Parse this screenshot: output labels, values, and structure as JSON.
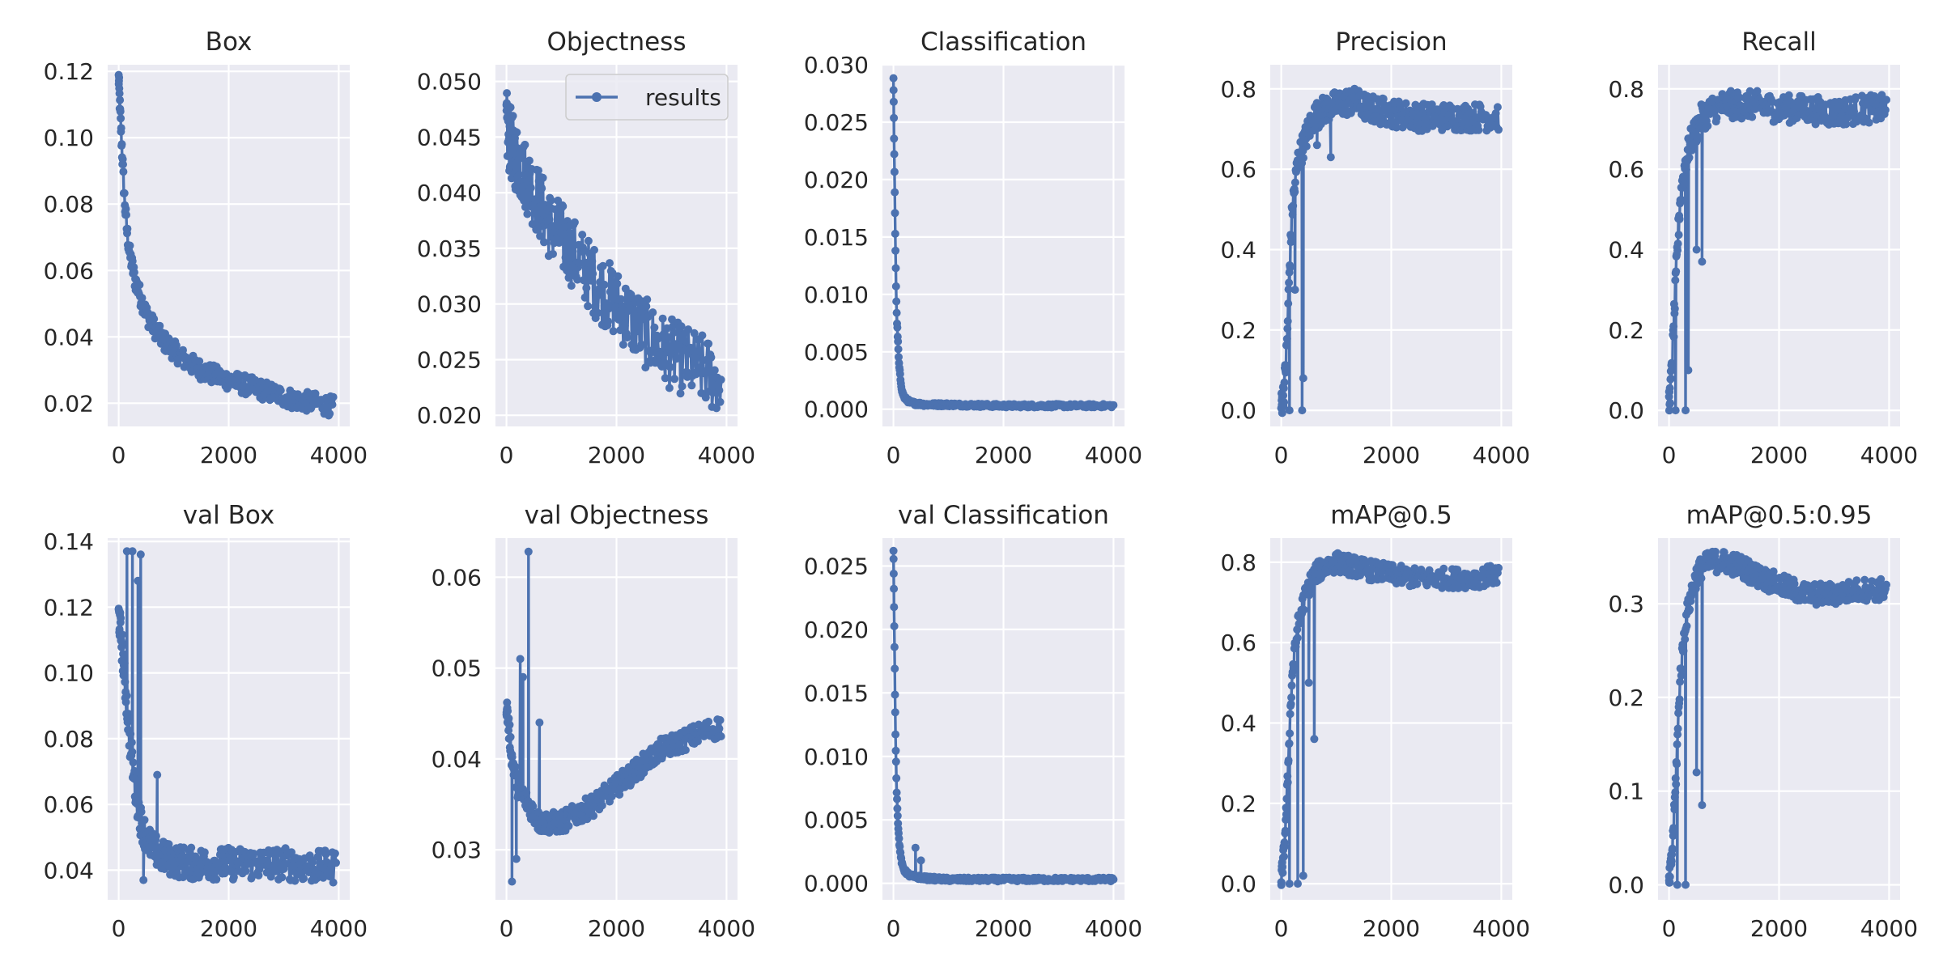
{
  "colors": {
    "series": "#4c72b0",
    "panel_bg": "#eaeaf2",
    "grid": "#ffffff",
    "text": "#262626"
  },
  "chart_data": [
    {
      "type": "line",
      "title": "Box",
      "xlabel": "",
      "ylabel": "",
      "xlim": [
        -200,
        4200
      ],
      "ylim": [
        0.013,
        0.122
      ],
      "xticks": [
        0,
        2000,
        4000
      ],
      "xtick_labels": [
        "0",
        "2000",
        "4000"
      ],
      "yticks": [
        0.02,
        0.04,
        0.06,
        0.08,
        0.1,
        0.12
      ],
      "ytick_labels": [
        "0.02",
        "0.04",
        "0.06",
        "0.08",
        "0.10",
        "0.12"
      ],
      "grid": true,
      "series": [
        {
          "x": [
            0,
            25,
            50,
            100,
            150,
            200,
            300,
            400,
            500,
            600,
            800,
            1000,
            1200,
            1500,
            1800,
            2000,
            2400,
            2800,
            3200,
            3600,
            3900
          ],
          "y": [
            0.118,
            0.108,
            0.1,
            0.083,
            0.072,
            0.065,
            0.057,
            0.052,
            0.047,
            0.044,
            0.039,
            0.036,
            0.033,
            0.03,
            0.028,
            0.027,
            0.025,
            0.023,
            0.021,
            0.02,
            0.019
          ],
          "noise": 0.003
        }
      ]
    },
    {
      "type": "line",
      "title": "Objectness",
      "xlabel": "",
      "ylabel": "",
      "xlim": [
        -200,
        4200
      ],
      "ylim": [
        0.019,
        0.0515
      ],
      "xticks": [
        0,
        2000,
        4000
      ],
      "xtick_labels": [
        "0",
        "2000",
        "4000"
      ],
      "yticks": [
        0.02,
        0.025,
        0.03,
        0.035,
        0.04,
        0.045,
        0.05
      ],
      "ytick_labels": [
        "0.020",
        "0.025",
        "0.030",
        "0.035",
        "0.040",
        "0.045",
        "0.050"
      ],
      "grid": true,
      "legend": "top-right",
      "series": [
        {
          "name": "results",
          "x": [
            0,
            50,
            100,
            200,
            400,
            600,
            800,
            1000,
            1300,
            1600,
            2000,
            2400,
            2800,
            3200,
            3600,
            3900
          ],
          "y": [
            0.046,
            0.045,
            0.044,
            0.043,
            0.041,
            0.039,
            0.037,
            0.036,
            0.034,
            0.032,
            0.03,
            0.028,
            0.026,
            0.025,
            0.024,
            0.023
          ],
          "noise": 0.0032
        }
      ]
    },
    {
      "type": "line",
      "title": "Classification",
      "xlabel": "",
      "ylabel": "",
      "xlim": [
        -200,
        4200
      ],
      "ylim": [
        -0.0015,
        0.03
      ],
      "xticks": [
        0,
        2000,
        4000
      ],
      "xtick_labels": [
        "0",
        "2000",
        "4000"
      ],
      "yticks": [
        0.0,
        0.005,
        0.01,
        0.015,
        0.02,
        0.025,
        0.03
      ],
      "ytick_labels": [
        "0.000",
        "0.005",
        "0.010",
        "0.015",
        "0.020",
        "0.025",
        "0.030"
      ],
      "grid": true,
      "series": [
        {
          "x": [
            0,
            10,
            20,
            30,
            40,
            50,
            60,
            80,
            100,
            130,
            160,
            200,
            250,
            300,
            400,
            600,
            1000,
            2000,
            3000,
            4000
          ],
          "y": [
            0.0287,
            0.024,
            0.02,
            0.016,
            0.013,
            0.01,
            0.008,
            0.006,
            0.004,
            0.0025,
            0.0015,
            0.001,
            0.0008,
            0.0006,
            0.0005,
            0.0004,
            0.0004,
            0.0003,
            0.0003,
            0.0003
          ],
          "noise": 0.00015
        }
      ]
    },
    {
      "type": "line",
      "title": "Precision",
      "xlabel": "",
      "ylabel": "",
      "xlim": [
        -200,
        4200
      ],
      "ylim": [
        -0.04,
        0.86
      ],
      "xticks": [
        0,
        2000,
        4000
      ],
      "xtick_labels": [
        "0",
        "2000",
        "4000"
      ],
      "yticks": [
        0.0,
        0.2,
        0.4,
        0.6,
        0.8
      ],
      "ytick_labels": [
        "0.0",
        "0.2",
        "0.4",
        "0.6",
        "0.8"
      ],
      "grid": true,
      "series": [
        {
          "x": [
            0,
            50,
            100,
            150,
            200,
            300,
            400,
            500,
            600,
            800,
            1000,
            1300,
            1600,
            2000,
            2500,
            3000,
            3500,
            3950
          ],
          "y": [
            0.01,
            0.05,
            0.15,
            0.35,
            0.5,
            0.62,
            0.66,
            0.7,
            0.73,
            0.75,
            0.76,
            0.77,
            0.75,
            0.74,
            0.73,
            0.73,
            0.73,
            0.73
          ],
          "noise": 0.035,
          "drops": [
            [
              150,
              0.0
            ],
            [
              250,
              0.3
            ],
            [
              380,
              0.0
            ],
            [
              400,
              0.08
            ],
            [
              650,
              0.66
            ],
            [
              900,
              0.63
            ]
          ]
        }
      ]
    },
    {
      "type": "line",
      "title": "Recall",
      "xlabel": "",
      "ylabel": "",
      "xlim": [
        -200,
        4200
      ],
      "ylim": [
        -0.04,
        0.86
      ],
      "xticks": [
        0,
        2000,
        4000
      ],
      "xtick_labels": [
        "0",
        "2000",
        "4000"
      ],
      "yticks": [
        0.0,
        0.2,
        0.4,
        0.6,
        0.8
      ],
      "ytick_labels": [
        "0.0",
        "0.2",
        "0.4",
        "0.6",
        "0.8"
      ],
      "grid": true,
      "series": [
        {
          "x": [
            0,
            50,
            100,
            150,
            200,
            300,
            400,
            500,
            600,
            800,
            1000,
            1300,
            1600,
            2000,
            2500,
            3000,
            3500,
            3950
          ],
          "y": [
            0.01,
            0.1,
            0.25,
            0.4,
            0.52,
            0.62,
            0.67,
            0.7,
            0.73,
            0.75,
            0.76,
            0.76,
            0.76,
            0.75,
            0.75,
            0.74,
            0.75,
            0.75
          ],
          "noise": 0.035,
          "drops": [
            [
              120,
              0.0
            ],
            [
              300,
              0.0
            ],
            [
              500,
              0.4
            ],
            [
              600,
              0.37
            ],
            [
              350,
              0.1
            ]
          ]
        }
      ]
    },
    {
      "type": "line",
      "title": "val Box",
      "xlabel": "",
      "ylabel": "",
      "xlim": [
        -200,
        4200
      ],
      "ylim": [
        0.031,
        0.141
      ],
      "xticks": [
        0,
        2000,
        4000
      ],
      "xtick_labels": [
        "0",
        "2000",
        "4000"
      ],
      "yticks": [
        0.04,
        0.06,
        0.08,
        0.1,
        0.12,
        0.14
      ],
      "ytick_labels": [
        "0.04",
        "0.06",
        "0.08",
        "0.10",
        "0.12",
        "0.14"
      ],
      "grid": true,
      "series": [
        {
          "x": [
            0,
            50,
            100,
            150,
            200,
            300,
            400,
            500,
            600,
            800,
            1000,
            1300,
            1600,
            2000,
            2500,
            3000,
            3500,
            3950
          ],
          "y": [
            0.118,
            0.11,
            0.1,
            0.09,
            0.08,
            0.065,
            0.055,
            0.05,
            0.047,
            0.044,
            0.043,
            0.042,
            0.042,
            0.042,
            0.042,
            0.042,
            0.041,
            0.041
          ],
          "noise": 0.005,
          "drops": [
            [
              150,
              0.137
            ],
            [
              250,
              0.137
            ],
            [
              400,
              0.136
            ],
            [
              350,
              0.128
            ],
            [
              700,
              0.069
            ],
            [
              450,
              0.037
            ]
          ]
        }
      ]
    },
    {
      "type": "line",
      "title": "val Objectness",
      "xlabel": "",
      "ylabel": "",
      "xlim": [
        -200,
        4200
      ],
      "ylim": [
        0.0245,
        0.0643
      ],
      "xticks": [
        0,
        2000,
        4000
      ],
      "xtick_labels": [
        "0",
        "2000",
        "4000"
      ],
      "yticks": [
        0.03,
        0.04,
        0.05,
        0.06
      ],
      "ytick_labels": [
        "0.03",
        "0.04",
        "0.05",
        "0.06"
      ],
      "grid": true,
      "series": [
        {
          "x": [
            0,
            50,
            100,
            200,
            300,
            400,
            500,
            600,
            800,
            1000,
            1300,
            1600,
            2000,
            2400,
            2800,
            3200,
            3600,
            3900
          ],
          "y": [
            0.046,
            0.043,
            0.04,
            0.037,
            0.036,
            0.035,
            0.034,
            0.033,
            0.033,
            0.033,
            0.034,
            0.035,
            0.037,
            0.039,
            0.041,
            0.042,
            0.043,
            0.0435
          ],
          "noise": 0.0012,
          "drops": [
            [
              400,
              0.0628
            ],
            [
              250,
              0.051
            ],
            [
              100,
              0.0265
            ],
            [
              180,
              0.029
            ],
            [
              300,
              0.049
            ],
            [
              600,
              0.044
            ]
          ]
        }
      ]
    },
    {
      "type": "line",
      "title": "val Classification",
      "xlabel": "",
      "ylabel": "",
      "xlim": [
        -200,
        4200
      ],
      "ylim": [
        -0.0013,
        0.0272
      ],
      "xticks": [
        0,
        2000,
        4000
      ],
      "xtick_labels": [
        "0",
        "2000",
        "4000"
      ],
      "yticks": [
        0.0,
        0.005,
        0.01,
        0.015,
        0.02,
        0.025
      ],
      "ytick_labels": [
        "0.000",
        "0.005",
        "0.010",
        "0.015",
        "0.020",
        "0.025"
      ],
      "grid": true,
      "series": [
        {
          "x": [
            0,
            10,
            20,
            30,
            40,
            50,
            60,
            80,
            100,
            130,
            160,
            200,
            250,
            300,
            400,
            600,
            1000,
            2000,
            3000,
            4000
          ],
          "y": [
            0.0262,
            0.022,
            0.018,
            0.014,
            0.011,
            0.009,
            0.007,
            0.005,
            0.0035,
            0.0022,
            0.0014,
            0.001,
            0.0008,
            0.0006,
            0.0005,
            0.0004,
            0.0003,
            0.0003,
            0.0003,
            0.0003
          ],
          "noise": 0.00015,
          "drops": [
            [
              400,
              0.0028
            ],
            [
              500,
              0.0018
            ]
          ]
        }
      ]
    },
    {
      "type": "line",
      "title": "mAP@0.5",
      "xlabel": "",
      "ylabel": "",
      "xlim": [
        -200,
        4200
      ],
      "ylim": [
        -0.04,
        0.86
      ],
      "xticks": [
        0,
        2000,
        4000
      ],
      "xtick_labels": [
        "0",
        "2000",
        "4000"
      ],
      "yticks": [
        0.0,
        0.2,
        0.4,
        0.6,
        0.8
      ],
      "ytick_labels": [
        "0.0",
        "0.2",
        "0.4",
        "0.6",
        "0.8"
      ],
      "grid": true,
      "series": [
        {
          "x": [
            0,
            50,
            100,
            150,
            200,
            300,
            400,
            500,
            600,
            800,
            1000,
            1300,
            1600,
            2000,
            2500,
            3000,
            3500,
            3950
          ],
          "y": [
            0.01,
            0.08,
            0.2,
            0.38,
            0.52,
            0.64,
            0.7,
            0.74,
            0.77,
            0.79,
            0.8,
            0.79,
            0.78,
            0.77,
            0.76,
            0.76,
            0.76,
            0.77
          ],
          "noise": 0.025,
          "drops": [
            [
              150,
              0.0
            ],
            [
              300,
              0.0
            ],
            [
              400,
              0.02
            ],
            [
              600,
              0.36
            ],
            [
              500,
              0.5
            ]
          ]
        }
      ]
    },
    {
      "type": "line",
      "title": "mAP@0.5:0.95",
      "xlabel": "",
      "ylabel": "",
      "xlim": [
        -200,
        4200
      ],
      "ylim": [
        -0.016,
        0.37
      ],
      "xticks": [
        0,
        2000,
        4000
      ],
      "xtick_labels": [
        "0",
        "2000",
        "4000"
      ],
      "yticks": [
        0.0,
        0.1,
        0.2,
        0.3
      ],
      "ytick_labels": [
        "0.0",
        "0.1",
        "0.2",
        "0.3"
      ],
      "grid": true,
      "series": [
        {
          "x": [
            0,
            50,
            100,
            150,
            200,
            300,
            400,
            500,
            600,
            800,
            1000,
            1300,
            1600,
            2000,
            2500,
            3000,
            3500,
            3950
          ],
          "y": [
            0.0,
            0.03,
            0.08,
            0.15,
            0.22,
            0.28,
            0.31,
            0.33,
            0.34,
            0.345,
            0.345,
            0.34,
            0.33,
            0.32,
            0.31,
            0.31,
            0.315,
            0.315
          ],
          "noise": 0.012,
          "drops": [
            [
              150,
              0.0
            ],
            [
              300,
              0.0
            ],
            [
              600,
              0.085
            ],
            [
              500,
              0.12
            ]
          ]
        }
      ]
    }
  ]
}
